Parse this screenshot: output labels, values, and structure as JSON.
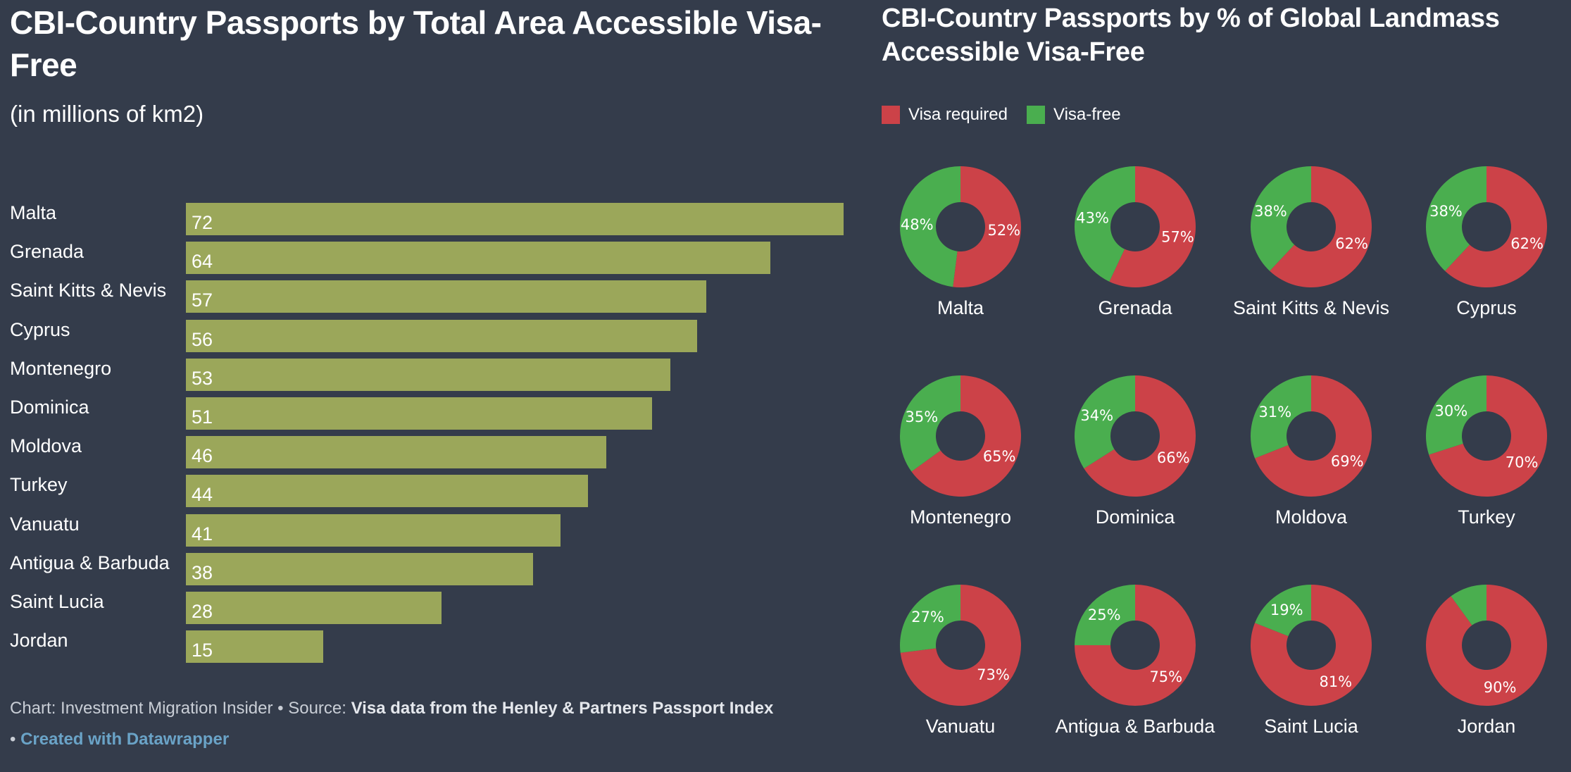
{
  "colors": {
    "background": "#343c4b",
    "bar": "#9ba75a",
    "visa_required": "#cc4248",
    "visa_free": "#4aae4f",
    "text": "#ffffff"
  },
  "footer": {
    "chart_prefix": "Chart: Investment Migration Insider • Source: ",
    "source_text": "Visa data from the Henley & Partners Passport Index",
    "created_prefix": "• ",
    "created_text": "Created with Datawrapper"
  },
  "chart_data": [
    {
      "type": "bar",
      "orientation": "horizontal",
      "title": "CBI-Country Passports by Total Area Accessible Visa-Free",
      "subtitle": "(in millions of km2)",
      "categories": [
        "Malta",
        "Grenada",
        "Saint Kitts & Nevis",
        "Cyprus",
        "Montenegro",
        "Dominica",
        "Moldova",
        "Turkey",
        "Vanuatu",
        "Antigua & Barbuda",
        "Saint Lucia",
        "Jordan"
      ],
      "values": [
        72,
        64,
        57,
        56,
        53,
        51,
        46,
        44,
        41,
        38,
        28,
        15
      ],
      "xlim": [
        0,
        72
      ],
      "grid": false
    },
    {
      "type": "pie",
      "variant": "donut-small-multiples",
      "title": "CBI-Country Passports by % of Global Landmass Accessible Visa-Free",
      "legend": {
        "position": "top-left",
        "entries": [
          "Visa required",
          "Visa-free"
        ]
      },
      "categories": [
        "Malta",
        "Grenada",
        "Saint Kitts & Nevis",
        "Cyprus",
        "Montenegro",
        "Dominica",
        "Moldova",
        "Turkey",
        "Vanuatu",
        "Antigua & Barbuda",
        "Saint Lucia",
        "Jordan"
      ],
      "series": [
        {
          "name": "Visa required",
          "values": [
            52,
            57,
            62,
            62,
            65,
            66,
            69,
            70,
            73,
            75,
            81,
            90
          ]
        },
        {
          "name": "Visa-free",
          "values": [
            48,
            43,
            38,
            38,
            35,
            34,
            31,
            30,
            27,
            25,
            19,
            10
          ]
        }
      ],
      "value_labels": {
        "required": [
          "52%",
          "57%",
          "62%",
          "62%",
          "65%",
          "66%",
          "69%",
          "70%",
          "73%",
          "75%",
          "81%",
          "90%"
        ],
        "free": [
          "48%",
          "43%",
          "38%",
          "38%",
          "35%",
          "34%",
          "31%",
          "30%",
          "27%",
          "25%",
          "19%",
          ""
        ]
      },
      "unit": "%"
    }
  ]
}
